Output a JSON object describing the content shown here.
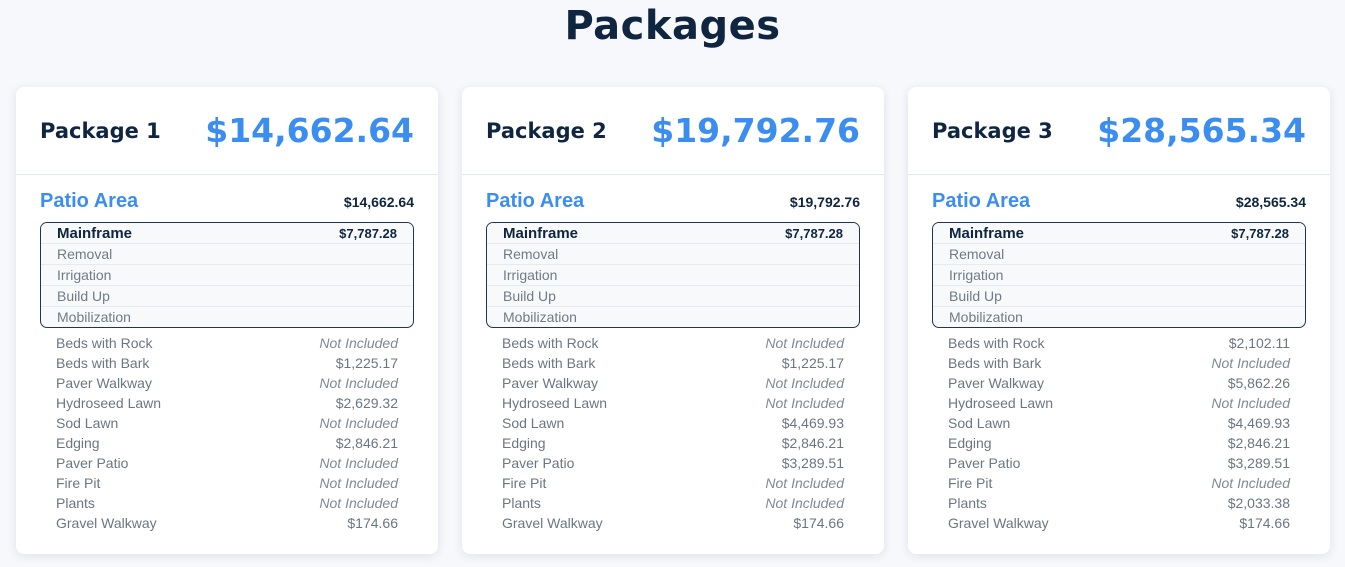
{
  "page": {
    "title": "Packages"
  },
  "packages": [
    {
      "name": "Package 1",
      "total": "$14,662.64",
      "area": {
        "name": "Patio Area",
        "price": "$14,662.64"
      },
      "mainframe": {
        "title": "Mainframe",
        "price": "$7,787.28",
        "items": [
          "Removal",
          "Irrigation",
          "Build Up",
          "Mobilization"
        ]
      },
      "line_items": [
        {
          "label": "Beds with Rock",
          "value": "Not Included",
          "included": false
        },
        {
          "label": "Beds with Bark",
          "value": "$1,225.17",
          "included": true
        },
        {
          "label": "Paver Walkway",
          "value": "Not Included",
          "included": false
        },
        {
          "label": "Hydroseed Lawn",
          "value": "$2,629.32",
          "included": true
        },
        {
          "label": "Sod Lawn",
          "value": "Not Included",
          "included": false
        },
        {
          "label": "Edging",
          "value": "$2,846.21",
          "included": true
        },
        {
          "label": "Paver Patio",
          "value": "Not Included",
          "included": false
        },
        {
          "label": "Fire Pit",
          "value": "Not Included",
          "included": false
        },
        {
          "label": "Plants",
          "value": "Not Included",
          "included": false
        },
        {
          "label": "Gravel Walkway",
          "value": "$174.66",
          "included": true
        }
      ]
    },
    {
      "name": "Package 2",
      "total": "$19,792.76",
      "area": {
        "name": "Patio Area",
        "price": "$19,792.76"
      },
      "mainframe": {
        "title": "Mainframe",
        "price": "$7,787.28",
        "items": [
          "Removal",
          "Irrigation",
          "Build Up",
          "Mobilization"
        ]
      },
      "line_items": [
        {
          "label": "Beds with Rock",
          "value": "Not Included",
          "included": false
        },
        {
          "label": "Beds with Bark",
          "value": "$1,225.17",
          "included": true
        },
        {
          "label": "Paver Walkway",
          "value": "Not Included",
          "included": false
        },
        {
          "label": "Hydroseed Lawn",
          "value": "Not Included",
          "included": false
        },
        {
          "label": "Sod Lawn",
          "value": "$4,469.93",
          "included": true
        },
        {
          "label": "Edging",
          "value": "$2,846.21",
          "included": true
        },
        {
          "label": "Paver Patio",
          "value": "$3,289.51",
          "included": true
        },
        {
          "label": "Fire Pit",
          "value": "Not Included",
          "included": false
        },
        {
          "label": "Plants",
          "value": "Not Included",
          "included": false
        },
        {
          "label": "Gravel Walkway",
          "value": "$174.66",
          "included": true
        }
      ]
    },
    {
      "name": "Package 3",
      "total": "$28,565.34",
      "area": {
        "name": "Patio Area",
        "price": "$28,565.34"
      },
      "mainframe": {
        "title": "Mainframe",
        "price": "$7,787.28",
        "items": [
          "Removal",
          "Irrigation",
          "Build Up",
          "Mobilization"
        ]
      },
      "line_items": [
        {
          "label": "Beds with Rock",
          "value": "$2,102.11",
          "included": true
        },
        {
          "label": "Beds with Bark",
          "value": "Not Included",
          "included": false
        },
        {
          "label": "Paver Walkway",
          "value": "$5,862.26",
          "included": true
        },
        {
          "label": "Hydroseed Lawn",
          "value": "Not Included",
          "included": false
        },
        {
          "label": "Sod Lawn",
          "value": "$4,469.93",
          "included": true
        },
        {
          "label": "Edging",
          "value": "$2,846.21",
          "included": true
        },
        {
          "label": "Paver Patio",
          "value": "$3,289.51",
          "included": true
        },
        {
          "label": "Fire Pit",
          "value": "Not Included",
          "included": false
        },
        {
          "label": "Plants",
          "value": "$2,033.38",
          "included": true
        },
        {
          "label": "Gravel Walkway",
          "value": "$174.66",
          "included": true
        }
      ]
    }
  ],
  "colors": {
    "navy": "#0f2540",
    "accent_blue": "#3b8ef0",
    "muted_text": "#6c7682",
    "background": "#f6f8fb"
  }
}
